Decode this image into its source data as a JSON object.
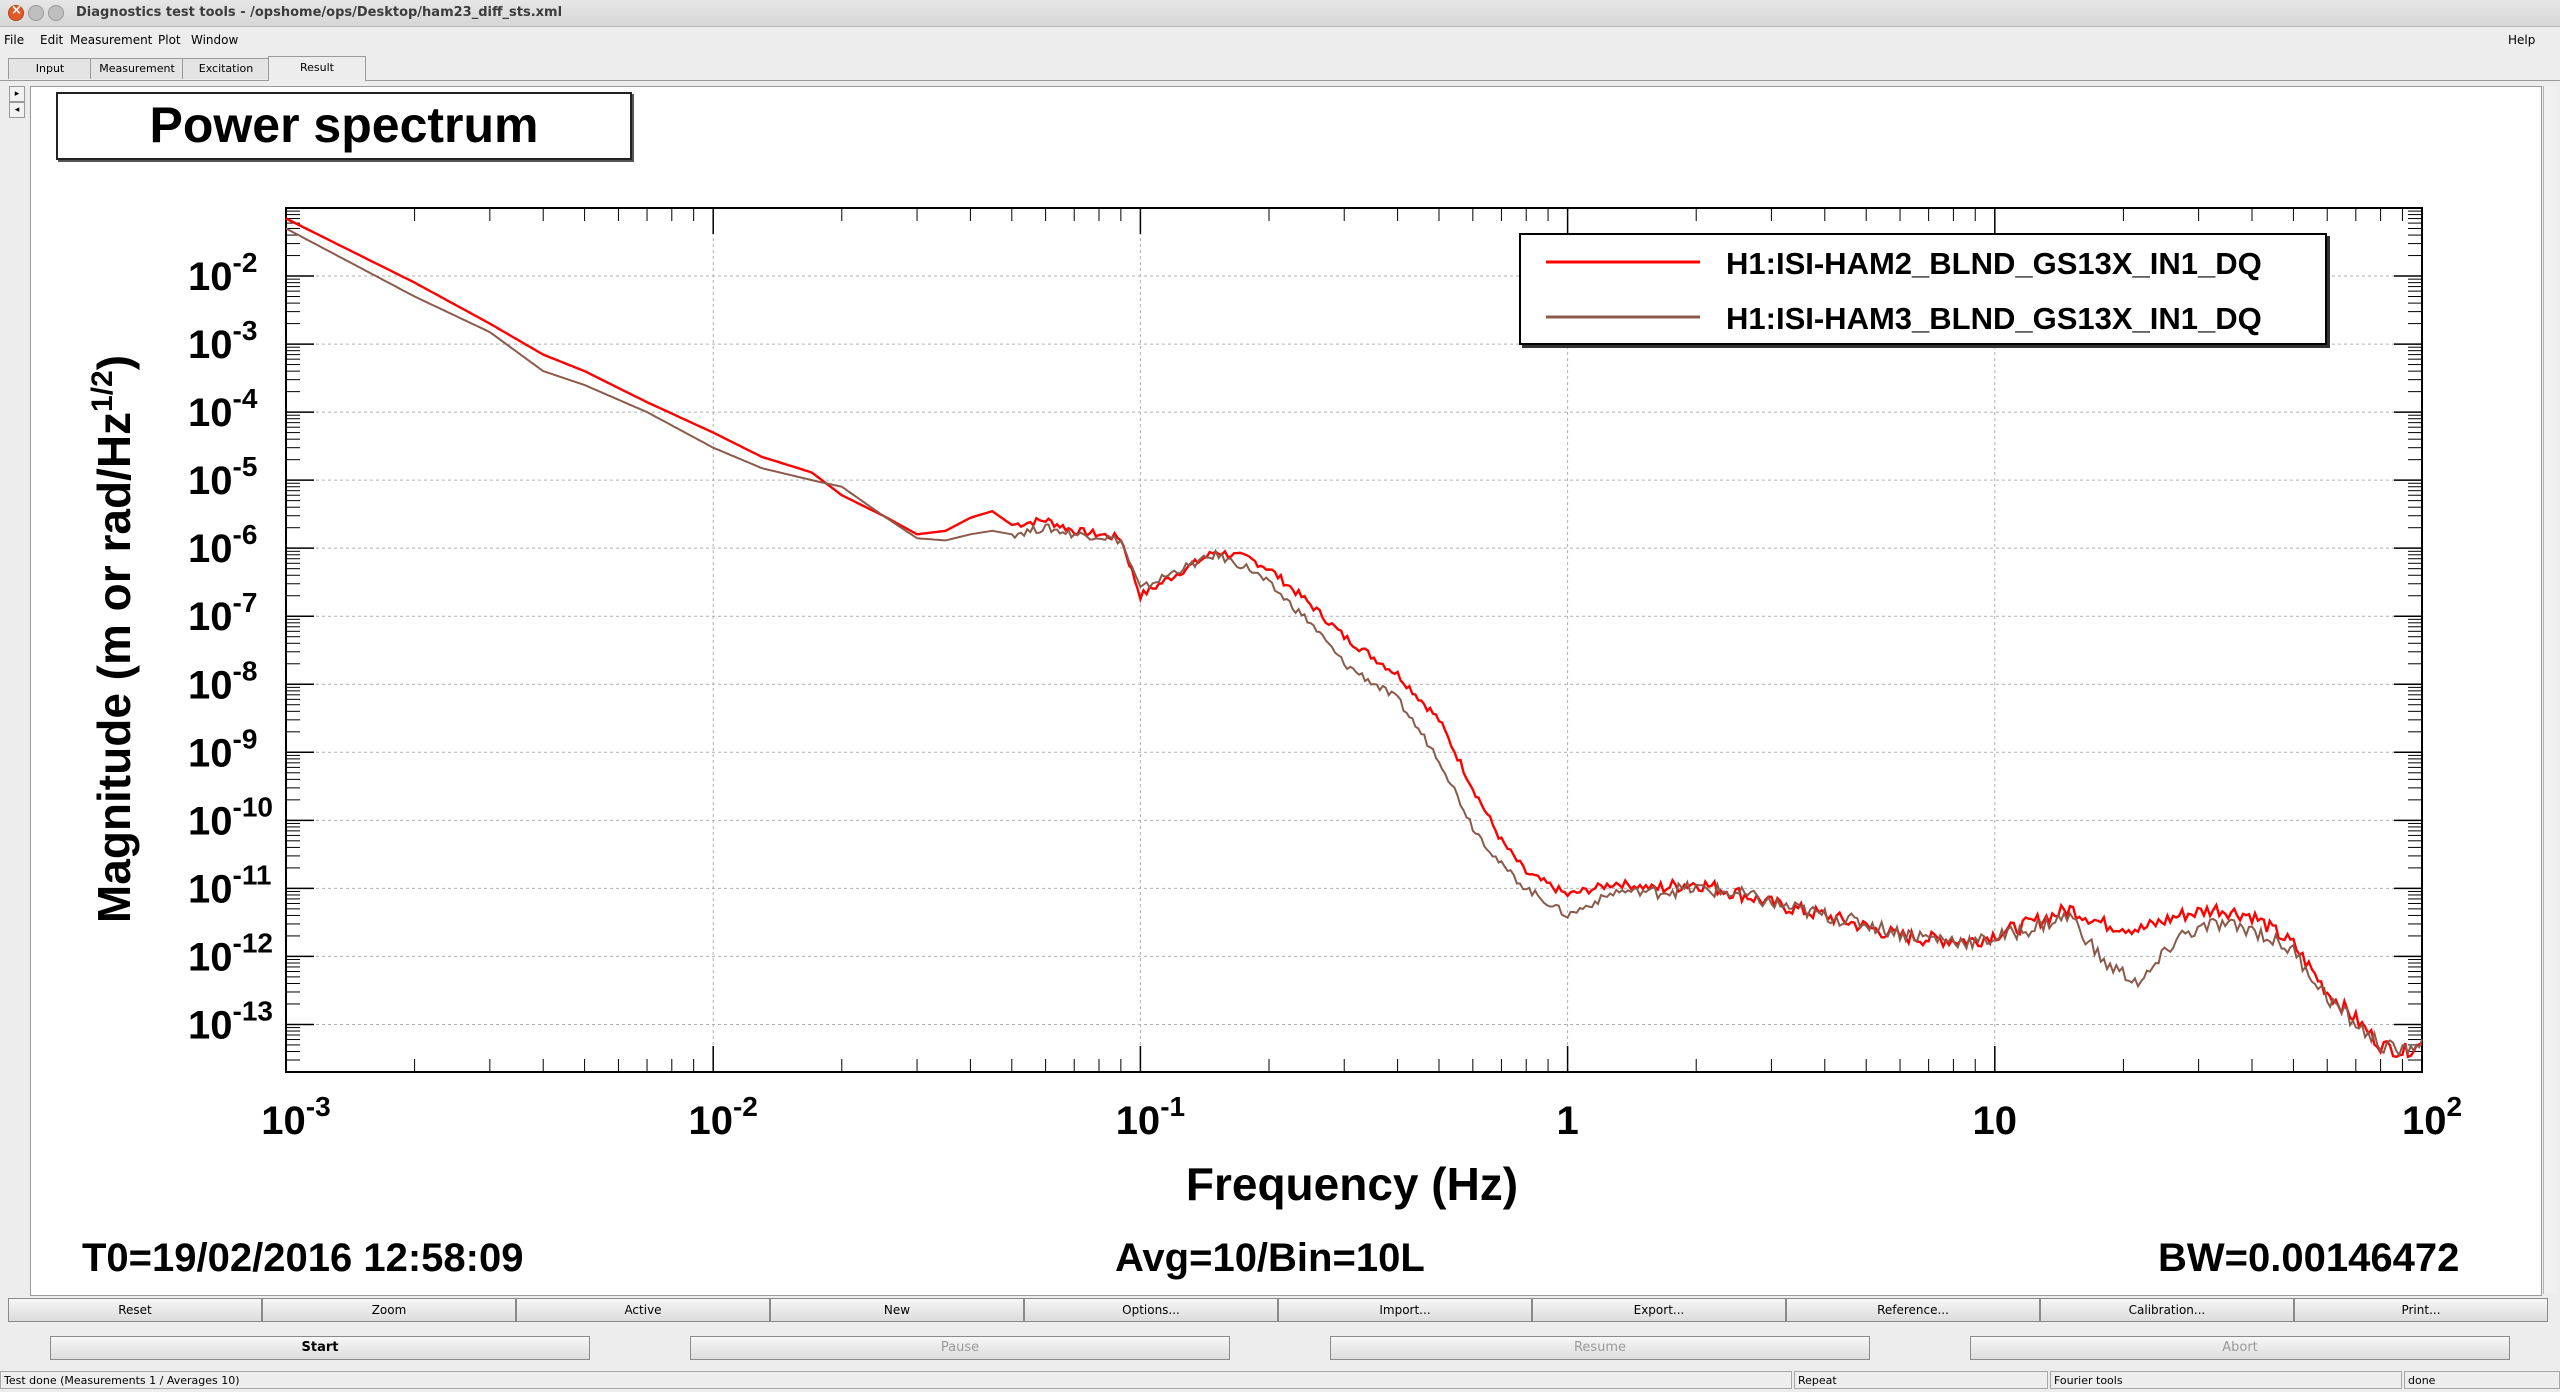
{
  "window": {
    "title": "Diagnostics test tools - /opshome/ops/Desktop/ham23_diff_sts.xml"
  },
  "menu": {
    "items": [
      "File",
      "Edit",
      "Measurement",
      "Plot",
      "Window"
    ],
    "help": "Help"
  },
  "tabs": [
    "Input",
    "Measurement",
    "Excitation",
    "Result"
  ],
  "active_tab": "Result",
  "plot": {
    "title": "Power spectrum",
    "t0": "T0=19/02/2016 12:58:09",
    "avg": "Avg=10/Bin=10L",
    "bw": "BW=0.00146472"
  },
  "chart_data": {
    "type": "line",
    "title": "Power spectrum",
    "xlabel": "Frequency (Hz)",
    "ylabel": "Magnitude (m or rad/Hz^(1/2))",
    "xscale": "log",
    "yscale": "log",
    "xlim": [
      0.001,
      100
    ],
    "ylim": [
      2e-14,
      0.1
    ],
    "grid": true,
    "legend_position": "top-right",
    "x_ticks": [
      "10^-3",
      "10^-2",
      "10^-1",
      "1",
      "10",
      "10^2"
    ],
    "y_ticks": [
      "10^-2",
      "10^-3",
      "10^-4",
      "10^-5",
      "10^-6",
      "10^-7",
      "10^-8",
      "10^-9",
      "10^-10",
      "10^-11",
      "10^-12",
      "10^-13"
    ],
    "series": [
      {
        "name": "H1:ISI-HAM2_BLND_GS13X_IN1_DQ",
        "color": "#ff0000",
        "points": [
          [
            0.001,
            0.07
          ],
          [
            0.002,
            0.008
          ],
          [
            0.003,
            0.002
          ],
          [
            0.004,
            0.0007
          ],
          [
            0.005,
            0.0004
          ],
          [
            0.007,
            0.00014
          ],
          [
            0.01,
            5e-05
          ],
          [
            0.013,
            2.2e-05
          ],
          [
            0.017,
            1.3e-05
          ],
          [
            0.02,
            6e-06
          ],
          [
            0.025,
            3e-06
          ],
          [
            0.03,
            1.6e-06
          ],
          [
            0.035,
            1.8e-06
          ],
          [
            0.04,
            2.8e-06
          ],
          [
            0.045,
            3.5e-06
          ],
          [
            0.05,
            2.2e-06
          ],
          [
            0.06,
            2.6e-06
          ],
          [
            0.07,
            1.8e-06
          ],
          [
            0.08,
            1.6e-06
          ],
          [
            0.09,
            1.4e-06
          ],
          [
            0.1,
            2e-07
          ],
          [
            0.12,
            4e-07
          ],
          [
            0.15,
            9e-07
          ],
          [
            0.18,
            7e-07
          ],
          [
            0.2,
            5e-07
          ],
          [
            0.25,
            1.5e-07
          ],
          [
            0.3,
            5e-08
          ],
          [
            0.4,
            1.4e-08
          ],
          [
            0.5,
            3e-09
          ],
          [
            0.6,
            3e-10
          ],
          [
            0.7,
            5e-11
          ],
          [
            0.8,
            1.7e-11
          ],
          [
            1,
            8e-12
          ],
          [
            1.3,
            1.2e-11
          ],
          [
            1.6,
            1e-11
          ],
          [
            2,
            1.2e-11
          ],
          [
            2.6,
            8e-12
          ],
          [
            3,
            6e-12
          ],
          [
            4,
            4e-12
          ],
          [
            5,
            2.7e-12
          ],
          [
            6,
            2e-12
          ],
          [
            7,
            1.8e-12
          ],
          [
            9,
            1.7e-12
          ],
          [
            12,
            3e-12
          ],
          [
            15,
            5e-12
          ],
          [
            18,
            3e-12
          ],
          [
            22,
            2.5e-12
          ],
          [
            27,
            4e-12
          ],
          [
            33,
            5e-12
          ],
          [
            40,
            4e-12
          ],
          [
            50,
            1.5e-12
          ],
          [
            60,
            3e-13
          ],
          [
            70,
            1.2e-13
          ],
          [
            80,
            5e-14
          ],
          [
            90,
            4e-14
          ],
          [
            100,
            5e-14
          ]
        ]
      },
      {
        "name": "H1:ISI-HAM3_BLND_GS13X_IN1_DQ",
        "color": "#8b5a4a",
        "points": [
          [
            0.001,
            0.05
          ],
          [
            0.002,
            0.005
          ],
          [
            0.003,
            0.0015
          ],
          [
            0.004,
            0.0004
          ],
          [
            0.005,
            0.00025
          ],
          [
            0.007,
            0.0001
          ],
          [
            0.01,
            3e-05
          ],
          [
            0.013,
            1.5e-05
          ],
          [
            0.017,
            1e-05
          ],
          [
            0.02,
            8e-06
          ],
          [
            0.025,
            3e-06
          ],
          [
            0.03,
            1.4e-06
          ],
          [
            0.035,
            1.3e-06
          ],
          [
            0.04,
            1.6e-06
          ],
          [
            0.045,
            1.8e-06
          ],
          [
            0.05,
            1.6e-06
          ],
          [
            0.06,
            2e-06
          ],
          [
            0.07,
            1.6e-06
          ],
          [
            0.08,
            1.5e-06
          ],
          [
            0.09,
            1.3e-06
          ],
          [
            0.1,
            2.5e-07
          ],
          [
            0.12,
            4.5e-07
          ],
          [
            0.15,
            8e-07
          ],
          [
            0.18,
            5e-07
          ],
          [
            0.2,
            3e-07
          ],
          [
            0.25,
            8e-08
          ],
          [
            0.3,
            2e-08
          ],
          [
            0.4,
            6e-09
          ],
          [
            0.5,
            8e-10
          ],
          [
            0.6,
            8e-11
          ],
          [
            0.7,
            2.2e-11
          ],
          [
            0.8,
            1e-11
          ],
          [
            1,
            4e-12
          ],
          [
            1.3,
            9e-12
          ],
          [
            1.6,
            9e-12
          ],
          [
            2,
            1e-11
          ],
          [
            2.6,
            8e-12
          ],
          [
            3,
            6e-12
          ],
          [
            4,
            4e-12
          ],
          [
            5,
            3e-12
          ],
          [
            6,
            2.2e-12
          ],
          [
            7,
            1.9e-12
          ],
          [
            9,
            1.6e-12
          ],
          [
            12,
            2.5e-12
          ],
          [
            15,
            4e-12
          ],
          [
            18,
            8e-13
          ],
          [
            22,
            4e-13
          ],
          [
            27,
            2e-12
          ],
          [
            33,
            3e-12
          ],
          [
            40,
            2.5e-12
          ],
          [
            50,
            1.2e-12
          ],
          [
            60,
            2.5e-13
          ],
          [
            70,
            1e-13
          ],
          [
            80,
            5e-14
          ],
          [
            90,
            4e-14
          ],
          [
            100,
            6e-14
          ]
        ]
      }
    ]
  },
  "action_buttons": [
    "Reset",
    "Zoom",
    "Active",
    "New",
    "Options...",
    "Import...",
    "Export...",
    "Reference...",
    "Calibration...",
    "Print..."
  ],
  "run_buttons": [
    {
      "label": "Start",
      "enabled": true
    },
    {
      "label": "Pause",
      "enabled": false
    },
    {
      "label": "Resume",
      "enabled": false
    },
    {
      "label": "Abort",
      "enabled": false
    }
  ],
  "status": {
    "message": "Test done (Measurements 1 / Averages 10)",
    "repeat": "Repeat",
    "tool": "Fourier tools",
    "state": "done"
  }
}
